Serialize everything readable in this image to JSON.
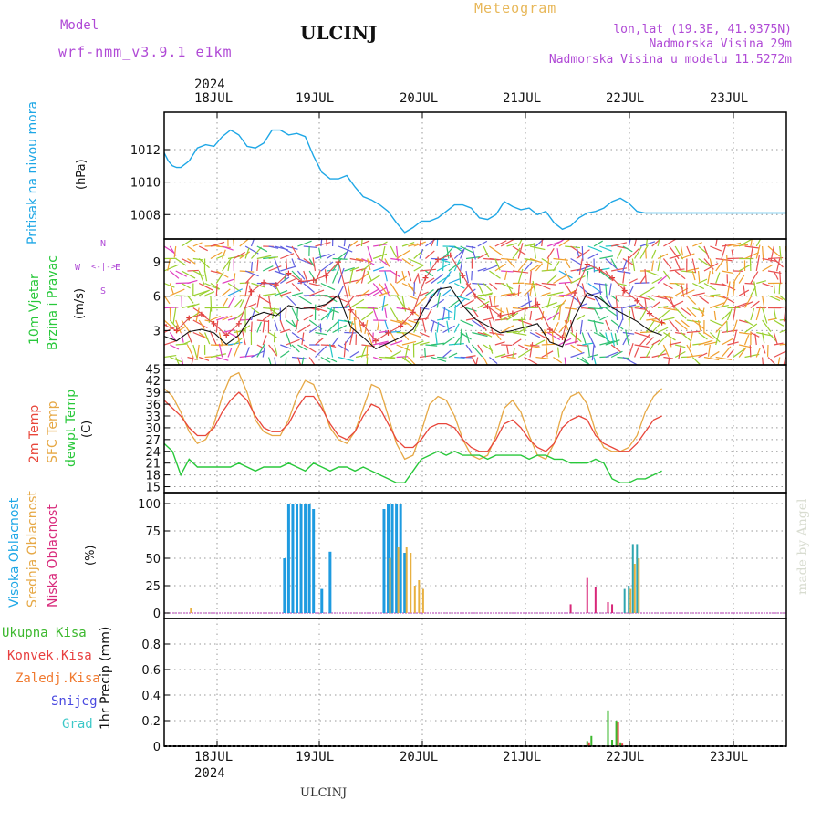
{
  "header": {
    "model_label": "Model",
    "model_name": "wrf-nmm_v3.9.1 e1km",
    "station": "ULCINJ",
    "product": "Meteogram",
    "coords": "lon,lat (19.3E, 41.9375N)",
    "elevation": "Nadmorska Visina 29m",
    "model_elevation": "Nadmorska Visina u modelu 11.5272m",
    "footer_station": "ULCINJ",
    "watermark": "made by Angel"
  },
  "axis": {
    "year": "2024",
    "days": [
      "18JUL",
      "19JUL",
      "20JUL",
      "21JUL",
      "22JUL",
      "23JUL"
    ]
  },
  "colors": {
    "pressure": "#1ea7e6",
    "t2m": "#e8463a",
    "sfc": "#e6a845",
    "dewpt": "#28c83a",
    "high_cloud": "#1e9be0",
    "mid_cloud": "#e8b040",
    "low_cloud": "#d8287a",
    "rain_total": "#3cb82e",
    "rain_conv": "#e84040",
    "rain_frz": "#f07a30",
    "snow": "#4a4ae0",
    "hail": "#3cc8c8"
  },
  "chart_data": [
    {
      "type": "line",
      "id": "pressure",
      "ylabel": "Pritisak na nivou mora",
      "unit": "(hPa)",
      "yticks": [
        1008,
        1010,
        1012
      ],
      "ylim": [
        1006.5,
        1014.3
      ],
      "series": [
        {
          "x": [
            0,
            1,
            2,
            3,
            4,
            6,
            8,
            10,
            12,
            14,
            16,
            18,
            20,
            22,
            24,
            26,
            28,
            30,
            32,
            34,
            36,
            38,
            40,
            42,
            44,
            46,
            48,
            50,
            52,
            54,
            56,
            58,
            60,
            62,
            64,
            66,
            68,
            70,
            72,
            74,
            76,
            78,
            80,
            82,
            84,
            86,
            88,
            90,
            92,
            94,
            96,
            98,
            100,
            102,
            104,
            106,
            108,
            110,
            112,
            114,
            116,
            118,
            120,
            122,
            124,
            126,
            128,
            130,
            132,
            134,
            136,
            138,
            140,
            142,
            144,
            146,
            148,
            150
          ],
          "y": [
            1011.8,
            1011.3,
            1011.0,
            1010.9,
            1010.9,
            1011.3,
            1012.1,
            1012.3,
            1012.2,
            1012.8,
            1013.2,
            1012.9,
            1012.2,
            1012.1,
            1012.4,
            1013.2,
            1013.2,
            1012.9,
            1013.0,
            1012.8,
            1011.6,
            1010.6,
            1010.2,
            1010.2,
            1010.4,
            1009.7,
            1009.1,
            1008.9,
            1008.6,
            1008.2,
            1007.5,
            1006.9,
            1007.2,
            1007.6,
            1007.6,
            1007.8,
            1008.2,
            1008.6,
            1008.6,
            1008.4,
            1007.8,
            1007.7,
            1008.0,
            1008.8,
            1008.5,
            1008.3,
            1008.4,
            1008.0,
            1008.2,
            1007.5,
            1007.1,
            1007.3,
            1007.8,
            1008.1,
            1008.2,
            1008.4,
            1008.8,
            1009.0,
            1008.7,
            1008.2,
            1008.1,
            1008.1,
            1008.1,
            1008.1,
            1008.1,
            1008.1,
            1008.1,
            1008.1,
            1008.1,
            1008.1,
            1008.1,
            1008.1,
            1008.1,
            1008.1,
            1008.1,
            1008.1,
            1008.1,
            1008.1
          ]
        }
      ]
    },
    {
      "type": "line",
      "id": "wind",
      "ylabel": "10m Vjetar Brzina i Pravac",
      "unit": "(m/s)",
      "direction_legend": [
        "N",
        "W",
        "E",
        "S"
      ],
      "yticks": [
        3,
        6,
        9
      ],
      "ylim": [
        0,
        11
      ],
      "series": [
        {
          "name": "speed",
          "x": [
            0,
            3,
            6,
            9,
            12,
            15,
            18,
            21,
            24,
            27,
            30,
            33,
            36,
            39,
            42,
            45,
            48,
            51,
            54,
            57,
            60,
            63,
            66,
            69,
            72,
            75,
            78,
            81,
            84,
            87,
            90,
            93,
            96,
            99,
            102,
            105,
            108,
            111,
            114,
            117,
            120
          ],
          "y": [
            2.5,
            2.1,
            2.9,
            3.1,
            2.8,
            1.8,
            2.6,
            4.2,
            4.6,
            4.3,
            5.2,
            4.9,
            5.0,
            5.3,
            6.1,
            3.3,
            2.4,
            1.4,
            1.9,
            2.4,
            3.1,
            5.1,
            6.6,
            6.8,
            5.2,
            4.0,
            3.4,
            2.8,
            3.0,
            3.3,
            3.6,
            2.0,
            1.6,
            4.2,
            6.3,
            5.8,
            5.0,
            4.4,
            3.8,
            3.0,
            2.6
          ]
        },
        {
          "name": "gust",
          "x": [
            0,
            3,
            6,
            9,
            12,
            15,
            18,
            21,
            24,
            27,
            30,
            33,
            36,
            39,
            42,
            45,
            48,
            51,
            54,
            57,
            60,
            63,
            66,
            69,
            72,
            75,
            78,
            81,
            84,
            87,
            90,
            93,
            96,
            99,
            102,
            105,
            108,
            111,
            114,
            117,
            120
          ],
          "y": [
            3.5,
            3.0,
            4.1,
            4.4,
            3.6,
            2.6,
            3.6,
            6.4,
            7.2,
            7.0,
            8.0,
            7.3,
            7.4,
            7.8,
            9.0,
            4.8,
            3.5,
            2.1,
            2.8,
            3.4,
            4.6,
            7.6,
            9.2,
            9.6,
            7.8,
            6.0,
            5.1,
            4.3,
            4.5,
            4.9,
            5.3,
            3.1,
            2.4,
            6.3,
            8.8,
            8.3,
            7.6,
            6.5,
            5.6,
            4.5,
            3.7
          ]
        }
      ]
    },
    {
      "type": "line",
      "id": "temperature",
      "ylabel": "2m Temp SFC Temp dewpt Temp",
      "unit": "(C)",
      "yticks": [
        15,
        18,
        21,
        24,
        27,
        30,
        33,
        36,
        39,
        42,
        45
      ],
      "ylim": [
        13.5,
        46
      ],
      "series": [
        {
          "name": "2m Temp",
          "x": [
            0,
            2,
            4,
            6,
            8,
            10,
            12,
            14,
            16,
            18,
            20,
            22,
            24,
            26,
            28,
            30,
            32,
            34,
            36,
            38,
            40,
            42,
            44,
            46,
            48,
            50,
            52,
            54,
            56,
            58,
            60,
            62,
            64,
            66,
            68,
            70,
            72,
            74,
            76,
            78,
            80,
            82,
            84,
            86,
            88,
            90,
            92,
            94,
            96,
            98,
            100,
            102,
            104,
            106,
            108,
            110,
            112,
            114,
            116,
            118,
            120
          ],
          "y": [
            37,
            35,
            33,
            30,
            28,
            28,
            30,
            34,
            37,
            39,
            37,
            33,
            30,
            29,
            29,
            31,
            35,
            38,
            38,
            35,
            31,
            28,
            27,
            29,
            33,
            36,
            35,
            31,
            27,
            25,
            25,
            27,
            30,
            31,
            31,
            30,
            27,
            25,
            24,
            24,
            27,
            31,
            32,
            30,
            27,
            25,
            24,
            26,
            30,
            32,
            33,
            32,
            28,
            26,
            25,
            24,
            24,
            26,
            29,
            32,
            33
          ]
        },
        {
          "name": "SFC Temp",
          "x": [
            0,
            2,
            4,
            6,
            8,
            10,
            12,
            14,
            16,
            18,
            20,
            22,
            24,
            26,
            28,
            30,
            32,
            34,
            36,
            38,
            40,
            42,
            44,
            46,
            48,
            50,
            52,
            54,
            56,
            58,
            60,
            62,
            64,
            66,
            68,
            70,
            72,
            74,
            76,
            78,
            80,
            82,
            84,
            86,
            88,
            90,
            92,
            94,
            96,
            98,
            100,
            102,
            104,
            106,
            108,
            110,
            112,
            114,
            116,
            118,
            120
          ],
          "y": [
            40,
            38,
            34,
            29,
            26,
            27,
            31,
            38,
            43,
            44,
            39,
            32,
            29,
            28,
            28,
            32,
            38,
            42,
            41,
            36,
            30,
            27,
            26,
            29,
            35,
            41,
            40,
            33,
            26,
            22,
            23,
            29,
            36,
            38,
            37,
            33,
            27,
            23,
            22,
            23,
            28,
            35,
            37,
            34,
            28,
            23,
            22,
            26,
            34,
            38,
            39,
            36,
            29,
            25,
            24,
            24,
            25,
            28,
            34,
            38,
            40
          ]
        },
        {
          "name": "dewpt Temp",
          "x": [
            0,
            2,
            4,
            6,
            8,
            10,
            12,
            14,
            16,
            18,
            20,
            22,
            24,
            26,
            28,
            30,
            32,
            34,
            36,
            38,
            40,
            42,
            44,
            46,
            48,
            50,
            52,
            54,
            56,
            58,
            60,
            62,
            64,
            66,
            68,
            70,
            72,
            74,
            76,
            78,
            80,
            82,
            84,
            86,
            88,
            90,
            92,
            94,
            96,
            98,
            100,
            102,
            104,
            106,
            108,
            110,
            112,
            114,
            116,
            118,
            120
          ],
          "y": [
            26,
            24,
            18,
            22,
            20,
            20,
            20,
            20,
            20,
            21,
            20,
            19,
            20,
            20,
            20,
            21,
            20,
            19,
            21,
            20,
            19,
            20,
            20,
            19,
            20,
            19,
            18,
            17,
            16,
            16,
            19,
            22,
            23,
            24,
            23,
            24,
            23,
            23,
            23,
            22,
            23,
            23,
            23,
            23,
            22,
            23,
            23,
            22,
            22,
            21,
            21,
            21,
            22,
            21,
            17,
            16,
            16,
            17,
            17,
            18,
            19
          ]
        }
      ]
    },
    {
      "type": "bar",
      "id": "cloud",
      "ylabel": "Visoka Oblacnost Srednja Oblacnost Niska Oblacnost",
      "unit": "(%)",
      "yticks": [
        0,
        25,
        50,
        75,
        100
      ],
      "ylim": [
        -5,
        110
      ],
      "series": [
        {
          "name": "Visoka Oblacnost",
          "x": [
            29,
            30,
            31,
            32,
            33,
            34,
            35,
            36,
            38,
            40,
            53,
            54,
            55,
            56,
            57,
            58
          ],
          "y": [
            50,
            100,
            100,
            100,
            100,
            100,
            100,
            95,
            22,
            56,
            95,
            100,
            100,
            100,
            100,
            55
          ]
        },
        {
          "name": "Srednja Oblacnost",
          "x": [
            6,
            54,
            56,
            58,
            59,
            60,
            61,
            62,
            112,
            113,
            114
          ],
          "y": [
            5,
            50,
            60,
            60,
            55,
            25,
            30,
            22,
            22,
            45,
            50
          ]
        },
        {
          "name": "Niska Oblacnost",
          "x": [
            98,
            102,
            104,
            107,
            108
          ],
          "y": [
            8,
            32,
            24,
            10,
            8
          ]
        },
        {
          "name": "mixed-column",
          "x": [
            111,
            112,
            113,
            114
          ],
          "y": [
            22,
            25,
            63,
            63
          ]
        }
      ]
    },
    {
      "type": "bar",
      "id": "precip",
      "ylabel": "1hr Precip (mm)",
      "yticks": [
        0,
        0.2,
        0.4,
        0.6,
        0.8
      ],
      "ylim": [
        0,
        1.0
      ],
      "series": [
        {
          "name": "Ukupna Kisa",
          "x": [
            102,
            103,
            107,
            108,
            109,
            110
          ],
          "y": [
            0.04,
            0.08,
            0.28,
            0.05,
            0.2,
            0.03
          ]
        },
        {
          "name": "Konvek.Kisa",
          "x": [
            102,
            109,
            110
          ],
          "y": [
            0.03,
            0.19,
            0.02
          ]
        },
        {
          "name": "Zaledj.Kisa",
          "x": [],
          "y": []
        },
        {
          "name": "Snijeg",
          "x": [],
          "y": []
        },
        {
          "name": "Grad",
          "x": [],
          "y": []
        }
      ]
    }
  ]
}
